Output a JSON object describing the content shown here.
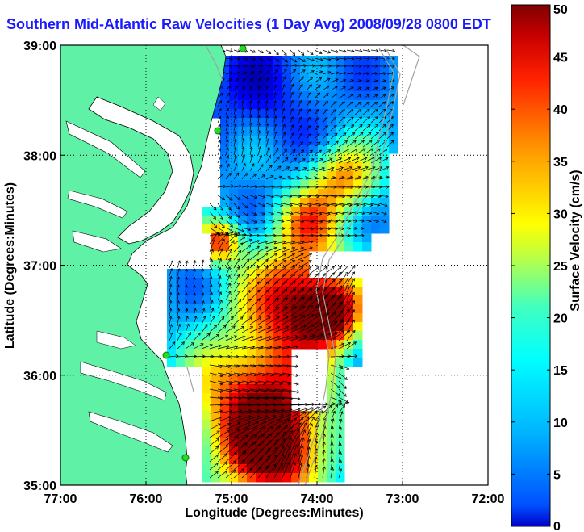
{
  "title": "Southern Mid-Atlantic Raw Velocities (1 Day Avg) 2008/09/28 0800 EDT",
  "map": {
    "xlabel": "Longitude (Degrees:Minutes)",
    "ylabel": "Latitude (Degrees:Minutes)",
    "x_ticks": [
      "77:00",
      "76:00",
      "75:00",
      "74:00",
      "73:00",
      "72:00"
    ],
    "y_ticks": [
      "35:00",
      "36:00",
      "37:00",
      "38:00",
      "39:00"
    ],
    "lon_range": [
      -77,
      -72
    ],
    "lat_range": [
      35,
      39
    ],
    "grid": "dotted",
    "land_color": "#5ff2a6",
    "water_color": "#ffffff",
    "vector_color": "#000000",
    "radar_site_color": "#22dd22"
  },
  "colorbar": {
    "label": "Surface Velocity (cm/s)",
    "ticks": [
      "0",
      "5",
      "10",
      "15",
      "20",
      "25",
      "30",
      "35",
      "40",
      "45",
      "50"
    ],
    "range": [
      0,
      50
    ],
    "colormap": "jet"
  }
}
